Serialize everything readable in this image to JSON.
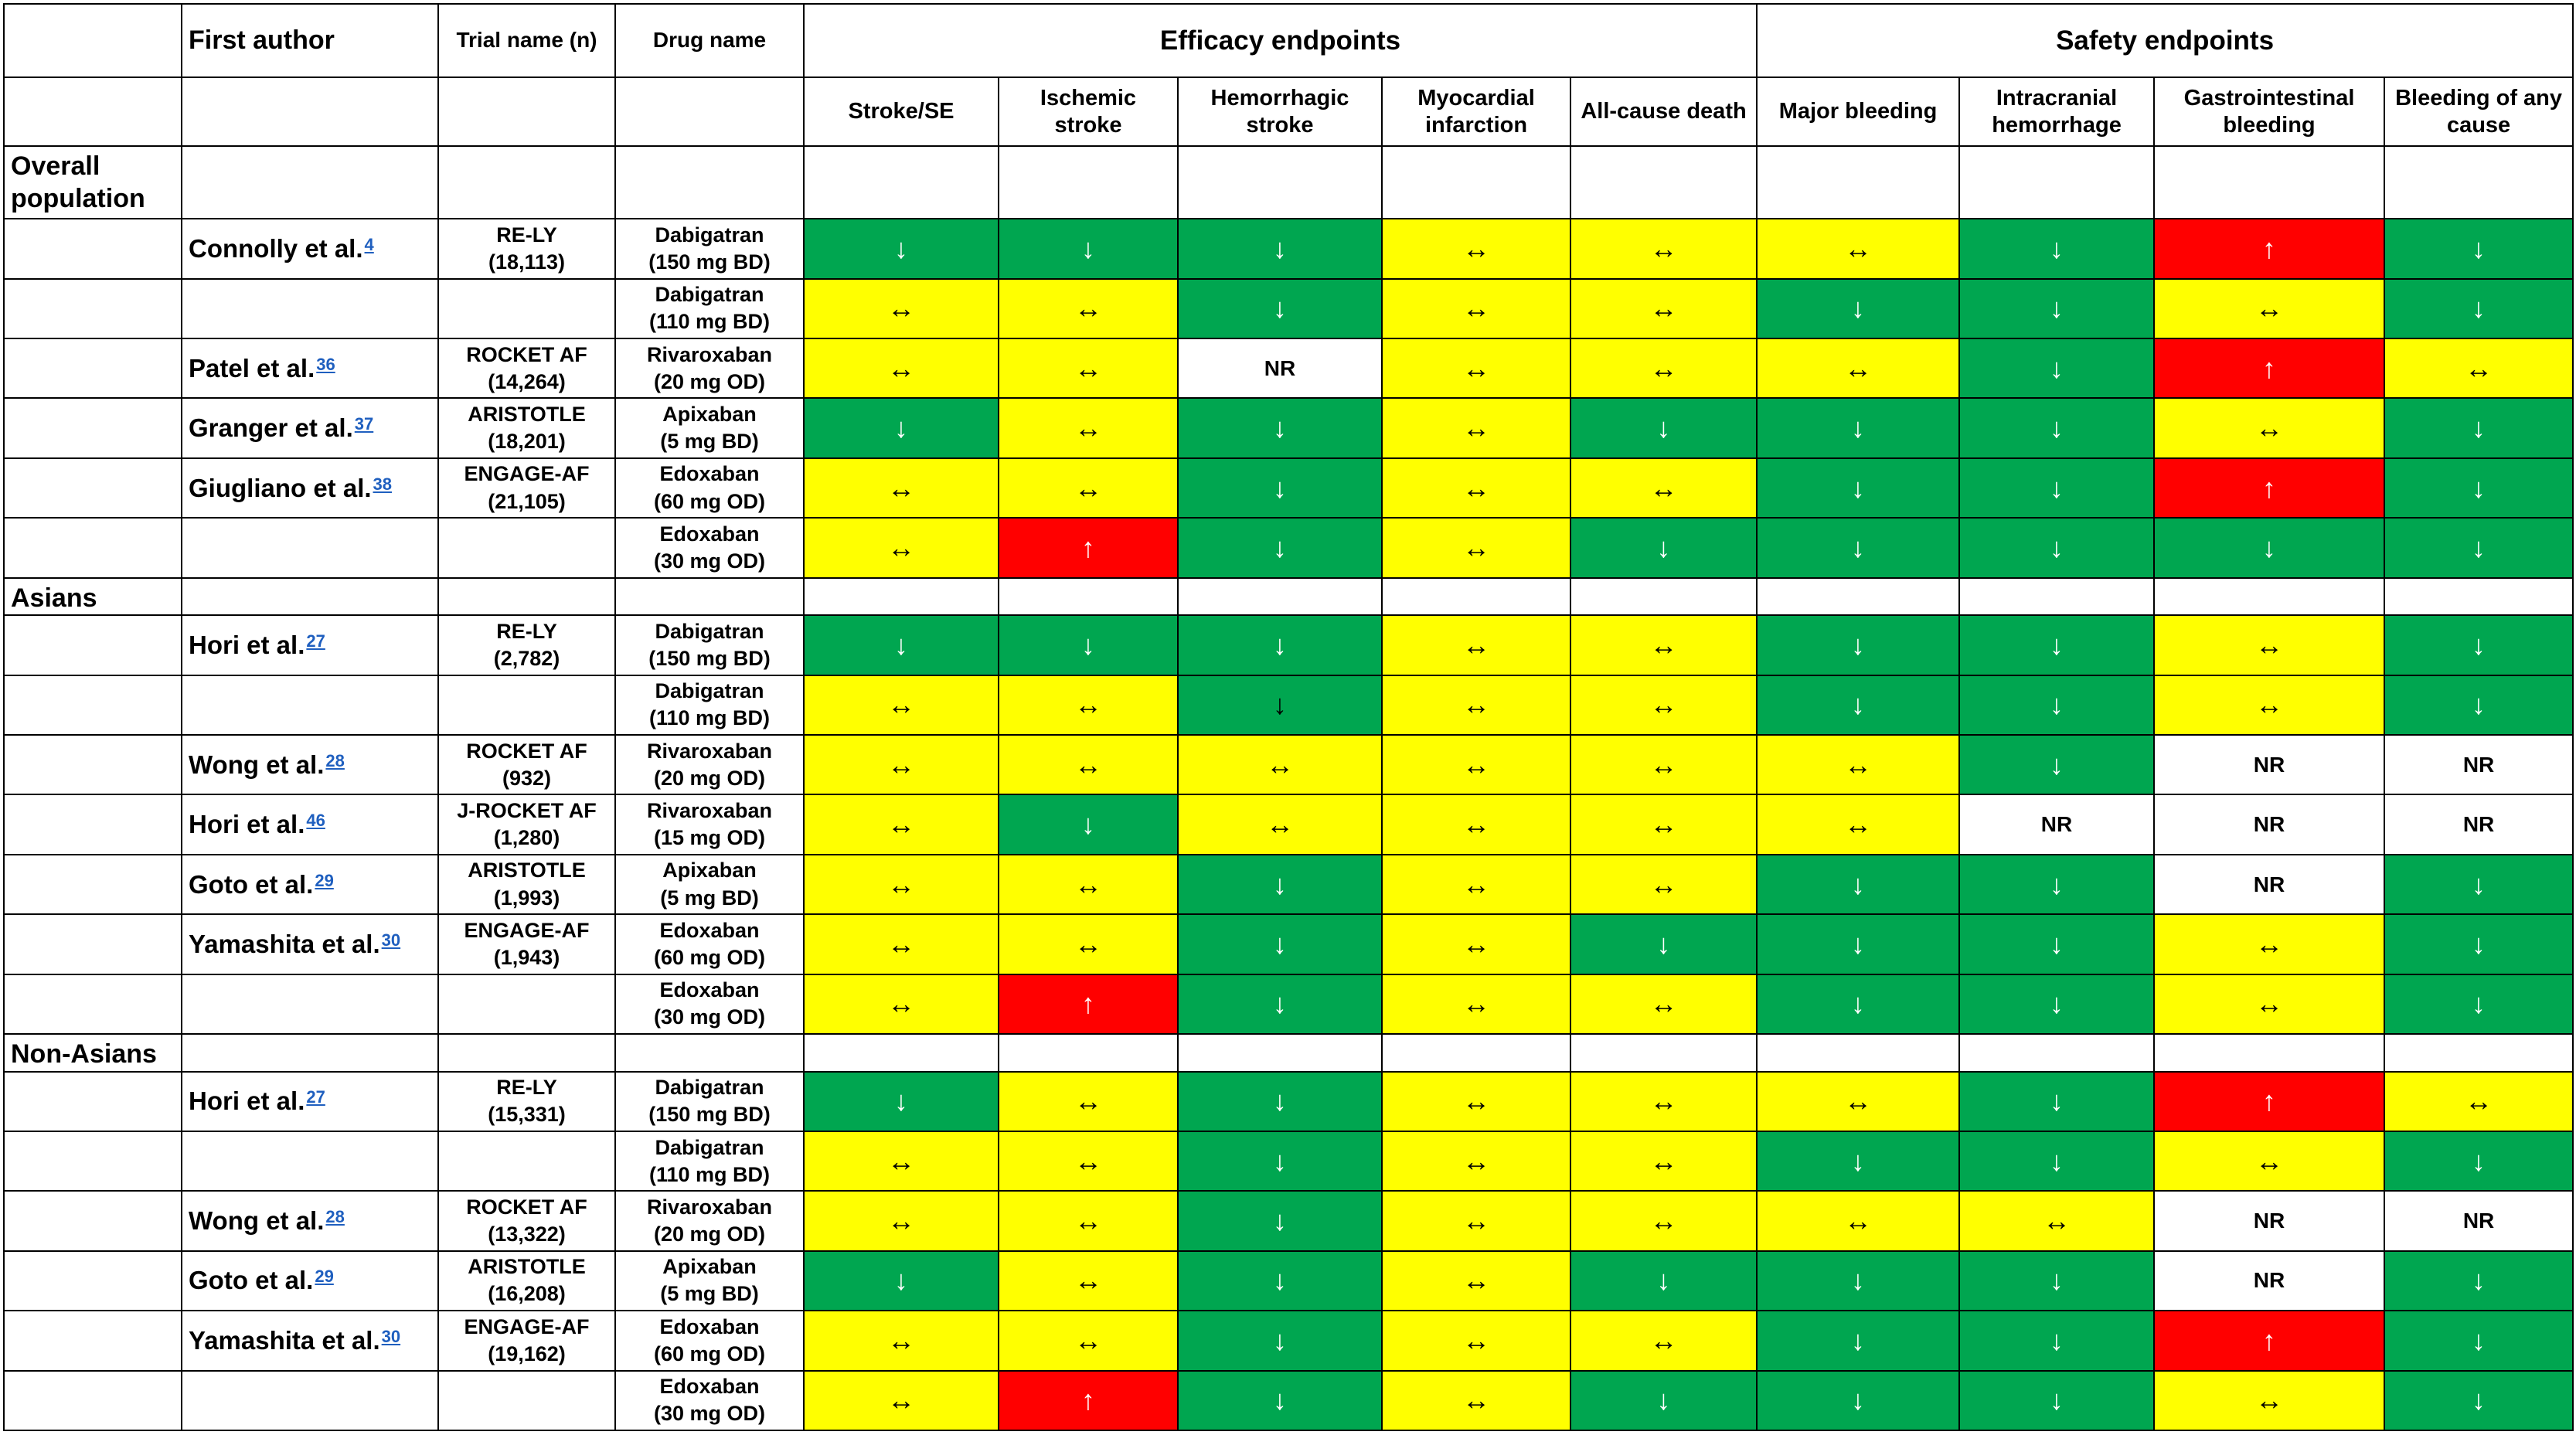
{
  "header": {
    "first_author": "First author",
    "trial_name": "Trial name (n)",
    "drug_name": "Drug name",
    "efficacy": "Efficacy endpoints",
    "safety": "Safety endpoints"
  },
  "endpoints": [
    "Stroke/SE",
    "Ischemic stroke",
    "Hemorrhagic stroke",
    "Myocardial infarction",
    "All-cause death",
    "Major bleeding",
    "Intracranial hemorrhage",
    "Gastrointestinal bleeding",
    "Bleeding of any cause"
  ],
  "legend": {
    "down": "↓",
    "both": "↔",
    "up": "↑",
    "nr": "NR"
  },
  "colors": {
    "down": "#00a650",
    "both": "#ffff00",
    "up": "#ff0000",
    "nr": "#ffffff"
  },
  "sections": [
    {
      "label": "Overall population",
      "rows": [
        {
          "author": "Connolly et al.",
          "ref": "4",
          "trial": "RE-LY",
          "n": "(18,113)",
          "drug": "Dabigatran",
          "dose": "(150 mg BD)",
          "cells": [
            "down",
            "down",
            "down",
            "both",
            "both",
            "both",
            "down",
            "up",
            "down"
          ]
        },
        {
          "author": "",
          "ref": "",
          "trial": "",
          "n": "",
          "drug": "Dabigatran",
          "dose": "(110 mg BD)",
          "cells": [
            "both",
            "both",
            "down",
            "both",
            "both",
            "down",
            "down",
            "both",
            "down"
          ]
        },
        {
          "author": "Patel et al.",
          "ref": "36",
          "trial": "ROCKET AF",
          "n": "(14,264)",
          "drug": "Rivaroxaban",
          "dose": "(20 mg OD)",
          "cells": [
            "both",
            "both",
            "nr",
            "both",
            "both",
            "both",
            "down",
            "up",
            "both"
          ]
        },
        {
          "author": "Granger et al.",
          "ref": "37",
          "trial": "ARISTOTLE",
          "n": "(18,201)",
          "drug": "Apixaban",
          "dose": "(5 mg BD)",
          "cells": [
            "down",
            "both",
            "down",
            "both",
            "down",
            "down",
            "down",
            "both",
            "down"
          ]
        },
        {
          "author": "Giugliano et al.",
          "ref": "38",
          "trial": "ENGAGE-AF",
          "n": "(21,105)",
          "drug": "Edoxaban",
          "dose": "(60 mg OD)",
          "cells": [
            "both",
            "both",
            "down",
            "both",
            "both",
            "down",
            "down",
            "up",
            "down"
          ]
        },
        {
          "author": "",
          "ref": "",
          "trial": "",
          "n": "",
          "drug": "Edoxaban",
          "dose": "(30 mg OD)",
          "cells": [
            "both",
            "up",
            "down",
            "both",
            "down",
            "down",
            "down",
            "down",
            "down"
          ]
        }
      ]
    },
    {
      "label": "Asians",
      "rows": [
        {
          "author": "Hori et al.",
          "ref": "27",
          "trial": "RE-LY",
          "n": "(2,782)",
          "drug": "Dabigatran",
          "dose": "(150 mg BD)",
          "cells": [
            "down",
            "down",
            "down",
            "both",
            "both",
            "down",
            "down",
            "both",
            "down"
          ]
        },
        {
          "author": "",
          "ref": "",
          "trial": "",
          "n": "",
          "drug": "Dabigatran",
          "dose": "(110 mg BD)",
          "cells": [
            "both",
            "both",
            "down-dark",
            "both",
            "both",
            "down",
            "down",
            "both",
            "down"
          ]
        },
        {
          "author": "Wong et al.",
          "ref": "28",
          "trial": "ROCKET AF",
          "n": "(932)",
          "drug": "Rivaroxaban",
          "dose": "(20 mg OD)",
          "cells": [
            "both",
            "both",
            "both",
            "both",
            "both",
            "both",
            "down",
            "nr",
            "nr"
          ]
        },
        {
          "author": "Hori et al.",
          "ref": "46",
          "trial": "J-ROCKET AF",
          "n": "(1,280)",
          "drug": "Rivaroxaban",
          "dose": "(15 mg OD)",
          "cells": [
            "both",
            "down",
            "both",
            "both",
            "both",
            "both",
            "nr",
            "nr",
            "nr"
          ]
        },
        {
          "author": "Goto et al.",
          "ref": "29",
          "trial": "ARISTOTLE",
          "n": "(1,993)",
          "drug": "Apixaban",
          "dose": "(5 mg BD)",
          "cells": [
            "both",
            "both",
            "down",
            "both",
            "both",
            "down",
            "down",
            "nr",
            "down"
          ]
        },
        {
          "author": "Yamashita et al.",
          "ref": "30",
          "trial": "ENGAGE-AF",
          "n": "(1,943)",
          "drug": "Edoxaban",
          "dose": "(60 mg OD)",
          "cells": [
            "both",
            "both",
            "down",
            "both",
            "down",
            "down",
            "down",
            "both",
            "down"
          ]
        },
        {
          "author": "",
          "ref": "",
          "trial": "",
          "n": "",
          "drug": "Edoxaban",
          "dose": "(30 mg OD)",
          "cells": [
            "both",
            "up",
            "down",
            "both",
            "both",
            "down",
            "down",
            "both",
            "down"
          ]
        }
      ]
    },
    {
      "label": "Non-Asians",
      "rows": [
        {
          "author": "Hori et al.",
          "ref": "27",
          "trial": "RE-LY",
          "n": "(15,331)",
          "drug": "Dabigatran",
          "dose": "(150 mg BD)",
          "cells": [
            "down",
            "both",
            "down",
            "both",
            "both",
            "both",
            "down",
            "up",
            "both"
          ]
        },
        {
          "author": "",
          "ref": "",
          "trial": "",
          "n": "",
          "drug": "Dabigatran",
          "dose": "(110 mg BD)",
          "cells": [
            "both",
            "both",
            "down",
            "both",
            "both",
            "down",
            "down",
            "both",
            "down"
          ]
        },
        {
          "author": "Wong et al.",
          "ref": "28",
          "trial": "ROCKET AF",
          "n": "(13,322)",
          "drug": "Rivaroxaban",
          "dose": "(20 mg OD)",
          "cells": [
            "both",
            "both",
            "down",
            "both",
            "both",
            "both",
            "both",
            "nr",
            "nr"
          ]
        },
        {
          "author": "Goto et al.",
          "ref": "29",
          "trial": "ARISTOTLE",
          "n": "(16,208)",
          "drug": "Apixaban",
          "dose": "(5 mg BD)",
          "cells": [
            "down",
            "both",
            "down",
            "both",
            "down",
            "down",
            "down",
            "nr",
            "down"
          ]
        },
        {
          "author": "Yamashita et al.",
          "ref": "30",
          "trial": "ENGAGE-AF",
          "n": "(19,162)",
          "drug": "Edoxaban",
          "dose": "(60 mg OD)",
          "cells": [
            "both",
            "both",
            "down",
            "both",
            "both",
            "down",
            "down",
            "up",
            "down"
          ]
        },
        {
          "author": "",
          "ref": "",
          "trial": "",
          "n": "",
          "drug": "Edoxaban",
          "dose": "(30 mg OD)",
          "cells": [
            "both",
            "up",
            "down",
            "both",
            "down",
            "down",
            "down",
            "both",
            "down"
          ]
        }
      ]
    }
  ]
}
